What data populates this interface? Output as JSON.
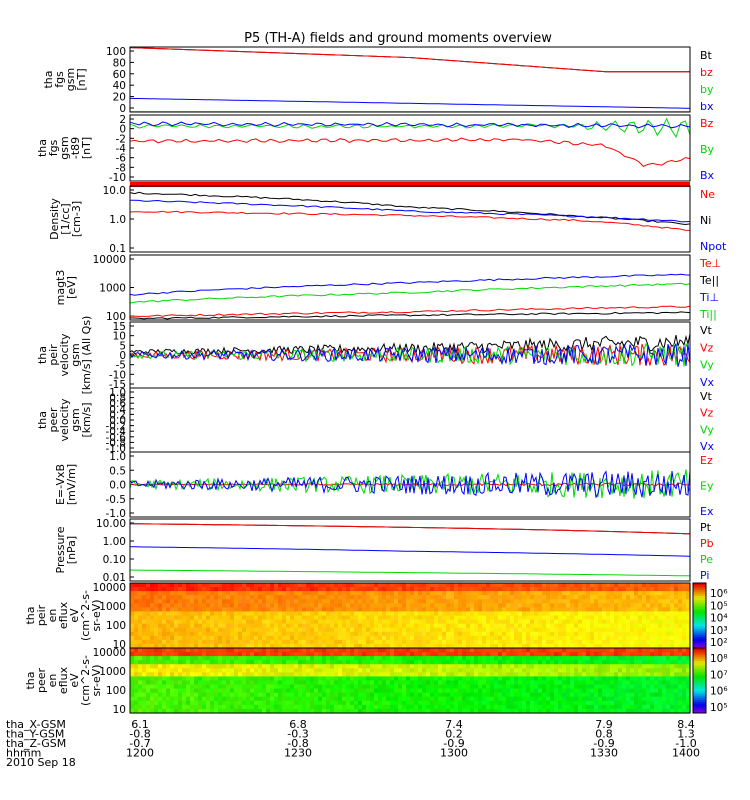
{
  "title": "P5 (TH-A) fields and ground moments overview",
  "colors": {
    "black": "#000000",
    "red": "#ff0000",
    "green": "#00d800",
    "blue": "#0000ff"
  },
  "chart_data": [
    {
      "type": "line",
      "panel": "fgs",
      "ylabel": [
        "tha",
        "fgs",
        "gsm",
        "[nT]"
      ],
      "yticks": [
        "100",
        "80",
        "60",
        "40",
        "20",
        "0"
      ],
      "ylim": [
        0,
        105
      ],
      "series": [
        {
          "name": "Bt",
          "color": "black",
          "x": [
            0,
            0.5,
            0.85,
            1
          ],
          "y": [
            104,
            88,
            65,
            65
          ]
        },
        {
          "name": "bz",
          "color": "red",
          "x": [
            0,
            0.5,
            0.85,
            1
          ],
          "y": [
            104,
            88,
            65,
            65
          ]
        },
        {
          "name": "by",
          "color": "green",
          "x": [
            0,
            1
          ],
          "y": [
            0.5,
            0.5
          ]
        },
        {
          "name": "bx",
          "color": "blue",
          "x": [
            0,
            0.5,
            1
          ],
          "y": [
            22,
            14,
            6
          ]
        }
      ]
    },
    {
      "type": "line",
      "panel": "fgs-t89",
      "ylabel": [
        "tha",
        "fgs",
        "gsm",
        "-t89",
        "[nT]"
      ],
      "yticks": [
        "2",
        "0",
        "-2",
        "-4",
        "-6",
        "-8",
        "-10"
      ],
      "ylim": [
        -12,
        3
      ],
      "series": [
        {
          "name": "Bz",
          "color": "red",
          "x": [
            0,
            0.7,
            0.85,
            0.92,
            1
          ],
          "y": [
            -3,
            -2.6,
            -4,
            -8.5,
            -7
          ]
        },
        {
          "name": "By",
          "color": "green",
          "x": [
            0,
            0.5,
            0.75,
            1
          ],
          "y": [
            0.5,
            0.4,
            0.6,
            0
          ]
        },
        {
          "name": "Bx",
          "color": "blue",
          "x": [
            0,
            0.5,
            1
          ],
          "y": [
            1.0,
            0.8,
            0.5
          ]
        }
      ]
    },
    {
      "type": "line",
      "panel": "density",
      "scale": "log",
      "ylabel": [
        "Density",
        "[1/cc]",
        "[cm-3]"
      ],
      "yticks": [
        "10.0",
        "1.0",
        "0.1"
      ],
      "ylim": [
        0.1,
        15
      ],
      "series": [
        {
          "name": "Ne",
          "color": "red",
          "x": [
            0,
            0.5,
            0.8,
            1
          ],
          "y": [
            2.2,
            1.6,
            1.1,
            0.5
          ]
        },
        {
          "name": "Ni",
          "color": "black",
          "x": [
            0,
            0.5,
            0.8,
            1
          ],
          "y": [
            9,
            3,
            1.5,
            0.8
          ]
        },
        {
          "name": "Npot",
          "color": "blue",
          "x": [
            0,
            0.5,
            0.8,
            1
          ],
          "y": [
            5,
            2.2,
            1.5,
            1.0
          ]
        }
      ]
    },
    {
      "type": "line",
      "panel": "temperature",
      "scale": "log",
      "ylabel": [
        "magt3",
        "[eV]"
      ],
      "yticks": [
        "10000",
        "1000",
        "100"
      ],
      "ylim": [
        100,
        10000
      ],
      "series": [
        {
          "name": "Te⊥",
          "color": "red",
          "x": [
            0,
            0.5,
            1
          ],
          "y": [
            130,
            180,
            260
          ]
        },
        {
          "name": "Te||",
          "color": "black",
          "x": [
            0,
            0.5,
            1
          ],
          "y": [
            110,
            140,
            170
          ]
        },
        {
          "name": "Ti⊥",
          "color": "blue",
          "x": [
            0,
            0.5,
            1
          ],
          "y": [
            600,
            1400,
            2500
          ]
        },
        {
          "name": "Ti||",
          "color": "green",
          "x": [
            0,
            0.5,
            1
          ],
          "y": [
            350,
            700,
            1300
          ]
        }
      ]
    },
    {
      "type": "line",
      "panel": "peir-velocity",
      "ylabel": [
        "tha",
        "peir",
        "velocity",
        "gsm",
        "[km/s] (All Qs)"
      ],
      "yticks": [
        "15",
        "10",
        "5",
        "0",
        "-5",
        "-10",
        "-15"
      ],
      "ylim": [
        -15,
        15
      ],
      "series": [
        {
          "name": "Vt",
          "color": "black",
          "x": [
            0,
            0.5,
            1
          ],
          "y": [
            1.5,
            3,
            6
          ]
        },
        {
          "name": "Vz",
          "color": "red",
          "x": [
            0,
            1
          ],
          "y": [
            0,
            0
          ]
        },
        {
          "name": "Vy",
          "color": "green",
          "x": [
            0,
            1
          ],
          "y": [
            0,
            0
          ]
        },
        {
          "name": "Vx",
          "color": "blue",
          "x": [
            0,
            1
          ],
          "y": [
            0,
            0
          ]
        }
      ]
    },
    {
      "type": "line",
      "panel": "peer-velocity",
      "ylabel": [
        "tha",
        "peer",
        "velocity",
        "gsm",
        "[km/s]"
      ],
      "yticks": [
        "1.0",
        "0.8",
        "0.6",
        "0.4",
        "0.2",
        "0.0",
        "-0.2",
        "-0.4",
        "-0.6",
        "-0.8",
        "-1.0"
      ],
      "ylim": [
        -1,
        1
      ],
      "series": [
        {
          "name": "Vt",
          "color": "black"
        },
        {
          "name": "Vz",
          "color": "red"
        },
        {
          "name": "Vy",
          "color": "green"
        },
        {
          "name": "Vx",
          "color": "blue"
        }
      ]
    },
    {
      "type": "line",
      "panel": "efield",
      "ylabel": [
        "E=-VxB",
        "[mV/m]"
      ],
      "yticks": [
        "1.0",
        "0.5",
        "0.0",
        "-0.5",
        "-1.0"
      ],
      "ylim": [
        -1,
        1
      ],
      "series": [
        {
          "name": "Ez",
          "color": "red",
          "x": [
            0,
            1
          ],
          "y": [
            0,
            0
          ]
        },
        {
          "name": "Ey",
          "color": "green",
          "x": [
            0,
            1
          ],
          "y": [
            0,
            0
          ]
        },
        {
          "name": "Ex",
          "color": "blue",
          "x": [
            0,
            1
          ],
          "y": [
            0,
            0
          ]
        }
      ]
    },
    {
      "type": "line",
      "panel": "pressure",
      "scale": "log",
      "ylabel": [
        "Pressure",
        "[nPa]"
      ],
      "yticks": [
        "10.00",
        "1.00",
        "0.10",
        "0.01"
      ],
      "ylim": [
        0.01,
        12
      ],
      "series": [
        {
          "name": "Pt",
          "color": "black",
          "x": [
            0,
            1
          ],
          "y": [
            7,
            2.2
          ]
        },
        {
          "name": "Pb",
          "color": "red",
          "x": [
            0,
            1
          ],
          "y": [
            7,
            2.2
          ]
        },
        {
          "name": "Pe",
          "color": "green",
          "x": [
            0,
            0.5,
            1
          ],
          "y": [
            0.035,
            0.026,
            0.018
          ]
        },
        {
          "name": "Pi",
          "color": "blue",
          "x": [
            0,
            0.5,
            1
          ],
          "y": [
            0.5,
            0.3,
            0.17
          ]
        }
      ]
    },
    {
      "type": "heatmap",
      "panel": "peir-spectrogram",
      "ylabel": [
        "tha",
        "peir",
        "en",
        "eflux",
        "eV",
        "(cm^2-s-",
        "sr-eV)"
      ],
      "yticks": [
        "10000",
        "1000",
        "100",
        "10"
      ],
      "colorbar_ticks": [
        "10⁶",
        "10⁵",
        "10⁴",
        "10³",
        "10²"
      ]
    },
    {
      "type": "heatmap",
      "panel": "peer-spectrogram",
      "ylabel": [
        "tha",
        "peer",
        "en",
        "eflux",
        "eV",
        "(cm^2-s-",
        "sr-eV)"
      ],
      "yticks": [
        "10000",
        "1000",
        "100",
        "10"
      ],
      "colorbar_ticks": [
        "10⁸",
        "10⁷",
        "10⁶",
        "10⁵"
      ]
    }
  ],
  "xaxis": {
    "rows": [
      {
        "label": "tha_X-GSM",
        "values": [
          "6.1",
          "6.8",
          "7.4",
          "7.9",
          "8.4"
        ]
      },
      {
        "label": "tha_Y-GSM",
        "values": [
          "-0.8",
          "-0.3",
          "0.2",
          "0.8",
          "1.3"
        ]
      },
      {
        "label": "tha_Z-GSM",
        "values": [
          "-0.7",
          "-0.8",
          "-0.9",
          "-0.9",
          "-1.0"
        ]
      },
      {
        "label": "hhmm",
        "values": [
          "1200",
          "1230",
          "1300",
          "1330",
          "1400"
        ]
      }
    ],
    "date": "2010 Sep 18"
  }
}
